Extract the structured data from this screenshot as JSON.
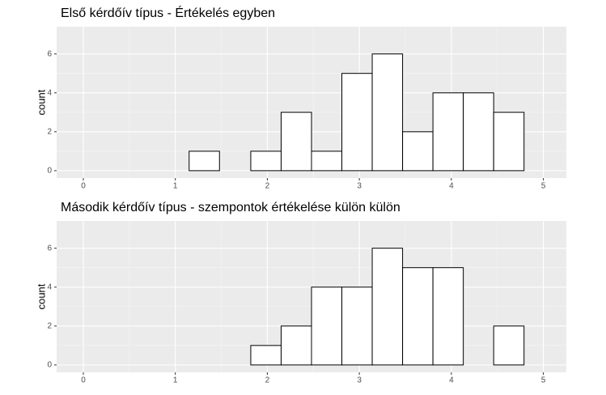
{
  "chart_data": [
    {
      "type": "histogram",
      "title": "Első kérdőív típus - Értékelés egyben",
      "ylabel": "count",
      "bins": [
        0.16,
        0.49,
        0.82,
        1.15,
        1.48,
        1.82,
        2.15,
        2.48,
        2.81,
        3.14,
        3.47,
        3.8,
        4.13,
        4.46,
        4.79
      ],
      "counts": [
        0,
        0,
        0,
        1,
        0,
        1,
        3,
        1,
        5,
        6,
        2,
        4,
        4,
        3
      ],
      "color": "#ffffff",
      "edgecolor": "#000000",
      "xlim": [
        -0.29,
        5.25
      ],
      "ylim": [
        -0.38,
        7.4
      ],
      "xticks": [
        0,
        1,
        2,
        3,
        4,
        5
      ],
      "yticks": [
        0,
        2,
        4,
        6
      ],
      "grid": true
    },
    {
      "type": "histogram",
      "title": "Második kérdőív típus - szempontok értékelése külön külön",
      "ylabel": "count",
      "bins": [
        0.16,
        0.49,
        0.82,
        1.15,
        1.48,
        1.82,
        2.15,
        2.48,
        2.81,
        3.14,
        3.47,
        3.8,
        4.13,
        4.46,
        4.79
      ],
      "counts": [
        0,
        0,
        0,
        0,
        0,
        1,
        2,
        4,
        4,
        6,
        5,
        5,
        0,
        2
      ],
      "color": "#ffffff",
      "edgecolor": "#000000",
      "xlim": [
        -0.29,
        5.25
      ],
      "ylim": [
        -0.38,
        7.4
      ],
      "xticks": [
        0,
        1,
        2,
        3,
        4,
        5
      ],
      "yticks": [
        0,
        2,
        4,
        6
      ],
      "grid": true
    }
  ]
}
